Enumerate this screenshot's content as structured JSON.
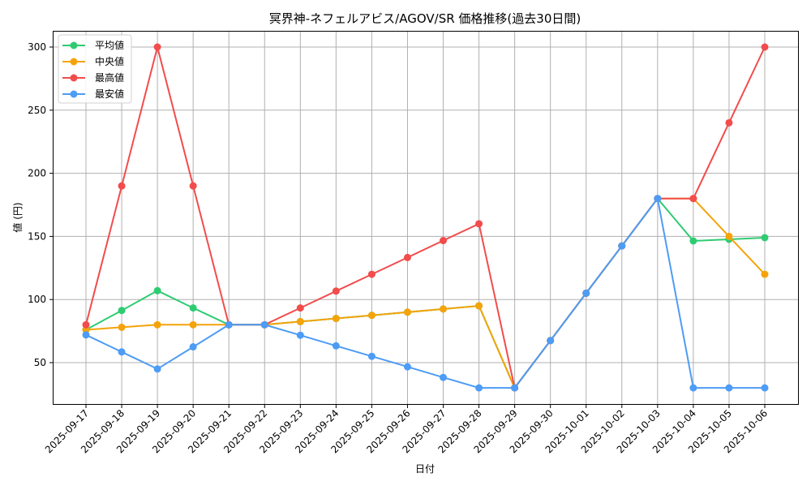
{
  "chart_data": {
    "type": "line",
    "title": "冥界神-ネフェルアビス/AGOV/SR 価格推移(過去30日間)",
    "xlabel": "日付",
    "ylabel": "値 (円)",
    "ylim": [
      17,
      314
    ],
    "yticks": [
      50,
      100,
      150,
      200,
      250,
      300
    ],
    "grid": true,
    "legend_position": "upper left",
    "x": [
      "2025-09-17",
      "2025-09-18",
      "2025-09-19",
      "2025-09-20",
      "2025-09-21",
      "2025-09-22",
      "2025-09-23",
      "2025-09-24",
      "2025-09-25",
      "2025-09-26",
      "2025-09-27",
      "2025-09-28",
      "2025-09-29",
      "2025-09-30",
      "2025-10-01",
      "2025-10-02",
      "2025-10-03",
      "2025-10-04",
      "2025-10-05",
      "2025-10-06"
    ],
    "series": [
      {
        "name": "平均値",
        "color": "#2ecc71",
        "values": [
          76,
          91.3,
          107,
          93.3,
          80,
          80,
          82.5,
          85,
          87.5,
          90,
          92.5,
          95,
          30,
          67.5,
          105,
          142.5,
          180,
          146.4,
          147.7,
          149
        ]
      },
      {
        "name": "中央値",
        "color": "#f5a30a",
        "values": [
          76,
          78,
          80,
          80,
          80,
          80,
          82.5,
          85,
          87.5,
          90,
          92.5,
          95,
          30,
          67.5,
          105,
          142.5,
          180,
          180,
          150,
          120
        ]
      },
      {
        "name": "最高値",
        "color": "#f24c4c",
        "values": [
          80,
          190,
          300,
          190,
          80,
          80,
          93.3,
          106.7,
          120,
          133.3,
          146.7,
          160,
          30,
          67.5,
          105,
          142.5,
          180,
          180,
          240,
          300
        ]
      },
      {
        "name": "最安値",
        "color": "#4d9cf5",
        "values": [
          72,
          58.5,
          45,
          62.5,
          80,
          80,
          71.7,
          63.3,
          55,
          46.7,
          38.3,
          30,
          30,
          67.5,
          105,
          142.5,
          180,
          30,
          30,
          30
        ]
      }
    ]
  }
}
